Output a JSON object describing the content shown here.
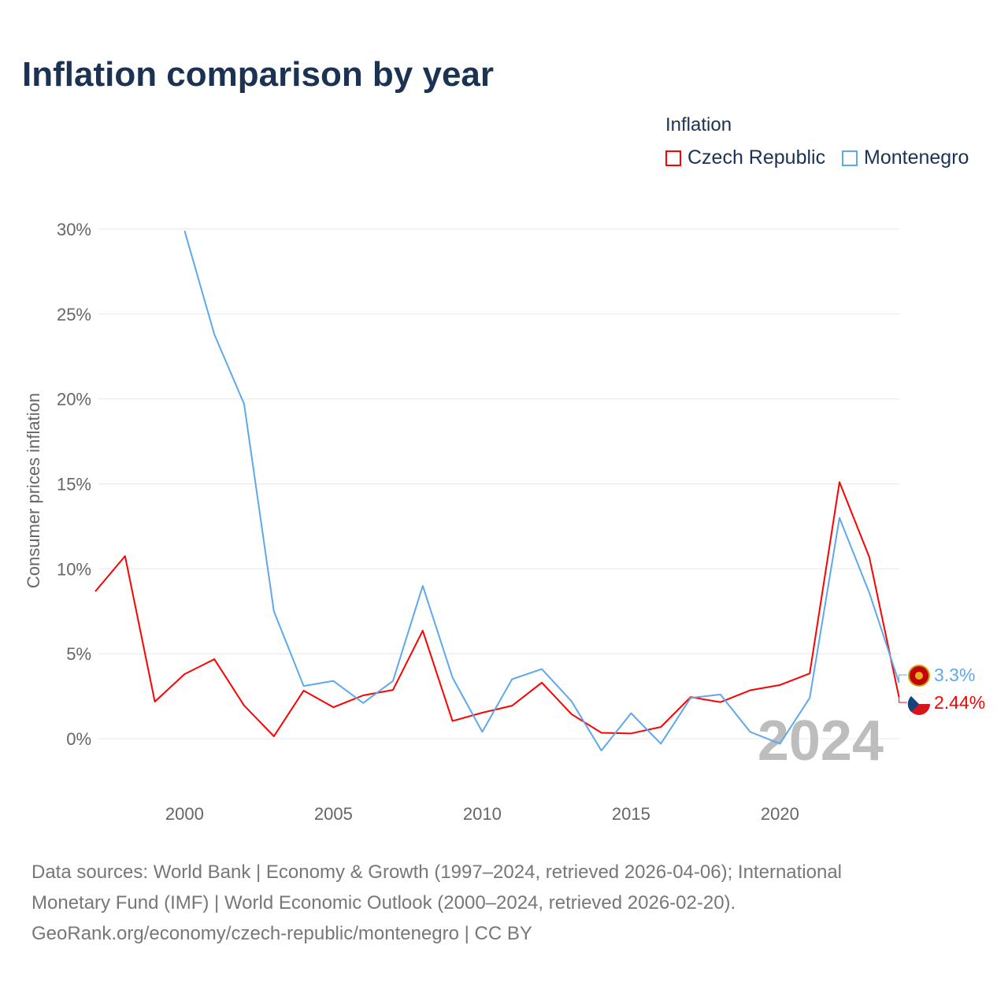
{
  "chart_data": {
    "type": "line",
    "title": "Inflation comparison by year",
    "ylabel": "Consumer prices inflation",
    "xlabel": "",
    "ylim": [
      -3,
      30
    ],
    "xlim": [
      1997,
      2024
    ],
    "yticks": [
      "0%",
      "5%",
      "10%",
      "15%",
      "20%",
      "25%",
      "30%"
    ],
    "ytick_values": [
      0,
      5,
      10,
      15,
      20,
      25,
      30
    ],
    "xticks": [
      "2000",
      "2005",
      "2010",
      "2015",
      "2020"
    ],
    "xtick_values": [
      2000,
      2005,
      2010,
      2015,
      2020
    ],
    "legend_title": "Inflation",
    "legend_placement": "top-right",
    "year_label": "2024",
    "series": [
      {
        "name": "Czech Republic",
        "color": "#ff0000",
        "end_label": "2.44%",
        "x": [
          1997,
          1998,
          1999,
          2000,
          2001,
          2002,
          2003,
          2004,
          2005,
          2006,
          2007,
          2008,
          2009,
          2010,
          2011,
          2012,
          2013,
          2014,
          2015,
          2016,
          2017,
          2018,
          2019,
          2020,
          2021,
          2022,
          2023,
          2024
        ],
        "values": [
          8.67,
          10.75,
          2.18,
          3.8,
          4.68,
          1.95,
          0.14,
          2.83,
          1.85,
          2.55,
          2.87,
          6.36,
          1.04,
          1.53,
          1.94,
          3.3,
          1.44,
          0.35,
          0.31,
          0.69,
          2.45,
          2.15,
          2.85,
          3.16,
          3.84,
          15.1,
          10.7,
          2.44
        ]
      },
      {
        "name": "Montenegro",
        "color": "#5ea8ec",
        "end_label": "3.3%",
        "x": [
          2000,
          2001,
          2002,
          2003,
          2004,
          2005,
          2006,
          2007,
          2008,
          2009,
          2010,
          2011,
          2012,
          2013,
          2014,
          2015,
          2016,
          2017,
          2018,
          2019,
          2020,
          2021,
          2022,
          2023,
          2024
        ],
        "values": [
          29.9,
          23.8,
          19.7,
          7.5,
          3.1,
          3.4,
          2.1,
          3.4,
          9.0,
          3.6,
          0.4,
          3.5,
          4.1,
          2.2,
          -0.7,
          1.5,
          -0.3,
          2.4,
          2.6,
          0.4,
          -0.3,
          2.4,
          13.0,
          8.6,
          3.3
        ]
      }
    ]
  },
  "footer": {
    "line1": "Data sources: World Bank | Economy & Growth (1997–2024, retrieved 2026-04-06); International",
    "line2": "Monetary Fund (IMF) | World Economic Outlook (2000–2024, retrieved 2026-02-20).",
    "line3": "GeoRank.org/economy/czech-republic/montenegro | CC BY"
  }
}
